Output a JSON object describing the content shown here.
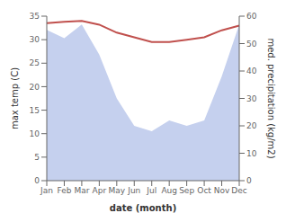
{
  "chart_data": {
    "type": "line",
    "categories": [
      "Jan",
      "Feb",
      "Mar",
      "Apr",
      "May",
      "Jun",
      "Jul",
      "Aug",
      "Sep",
      "Oct",
      "Nov",
      "Dec"
    ],
    "xlabel": "date (month)",
    "ylabel": "max temp (C)",
    "y2label": "med. precipitation (kg/m2)",
    "ylim": [
      0,
      35
    ],
    "yticks": [
      0,
      5,
      10,
      15,
      20,
      25,
      30,
      35
    ],
    "y2lim": [
      0,
      60
    ],
    "y2ticks": [
      0,
      10,
      20,
      30,
      40,
      50,
      60
    ],
    "series": [
      {
        "type": "area",
        "axis": "y2",
        "color": "#c5d0ee",
        "values": [
          55.0,
          52.0,
          57.0,
          46.0,
          30.0,
          20.0,
          18.0,
          22.0,
          20.0,
          22.0,
          38.0,
          57.0
        ]
      },
      {
        "type": "line",
        "color": "#c0504d",
        "values": [
          33.5,
          33.8,
          34.0,
          33.2,
          31.5,
          30.5,
          29.5,
          29.5,
          30.0,
          30.5,
          32.0,
          33.0
        ]
      }
    ]
  }
}
